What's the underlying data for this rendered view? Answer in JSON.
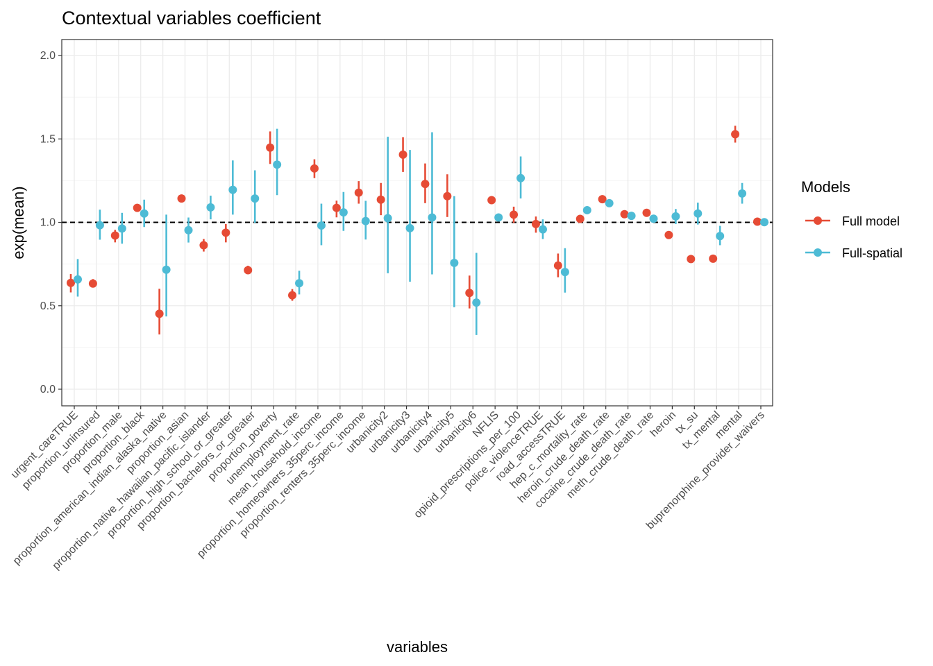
{
  "chart_data": {
    "type": "scatter",
    "subtype": "pointrange-dodged",
    "title": "Contextual variables coefficient",
    "xlabel": "variables",
    "ylabel": "exp(mean)",
    "ylim": [
      -0.1,
      2.1
    ],
    "yticks": [
      0.0,
      0.5,
      1.0,
      1.5,
      2.0
    ],
    "ytick_labels": [
      "0.0",
      "0.5",
      "1.0",
      "1.5",
      "2.0"
    ],
    "reference_line": {
      "y": 1.0,
      "style": "dashed",
      "color": "#000000"
    },
    "grid": true,
    "legend": {
      "title": "Models",
      "placement": "right"
    },
    "categories": [
      "urgent_careTRUE",
      "proportion_uninsured",
      "proportion_male",
      "proportion_black",
      "proportion_american_indian_alaska_native",
      "proportion_asian",
      "proportion_native_hawaiian_pacific_islander",
      "proportion_high_school_or_greater",
      "proportion_bachelors_or_greater",
      "proportion_poverty",
      "unemployment_rate",
      "mean_household_income",
      "proportion_homeowners_35perc_income",
      "proportion_renters_35perc_income",
      "urbanicity2",
      "urbanicity3",
      "urbanicity4",
      "urbanicity5",
      "urbanicity6",
      "NFLIS",
      "opioid_prescriptions_per_100",
      "police_violenceTRUE",
      "road_accessTRUE",
      "hep_c_mortality_rate",
      "heroin_crude_death_rate",
      "cocaine_crude_death_rate",
      "meth_crude_death_rate",
      "heroin",
      "tx_su",
      "tx_mental",
      "mental",
      "buprenorphine_provider_waivers"
    ],
    "series": [
      {
        "name": "Full model",
        "color": "#E64B35",
        "values": [
          0.637,
          0.633,
          0.921,
          1.087,
          0.452,
          1.143,
          0.863,
          0.938,
          0.713,
          1.448,
          0.563,
          1.323,
          1.087,
          1.178,
          1.136,
          1.406,
          1.23,
          1.157,
          0.577,
          1.133,
          1.046,
          0.99,
          0.741,
          1.021,
          1.139,
          1.049,
          1.057,
          0.924,
          0.78,
          0.782,
          1.528,
          1.004
        ],
        "lower": [
          0.58,
          0.61,
          0.88,
          1.07,
          0.328,
          1.13,
          0.825,
          0.88,
          0.69,
          1.35,
          0.53,
          1.265,
          1.03,
          1.112,
          1.043,
          1.302,
          1.115,
          1.032,
          0.484,
          1.12,
          0.997,
          0.938,
          0.671,
          1.01,
          1.128,
          1.038,
          1.046,
          0.912,
          0.76,
          0.765,
          1.478,
          0.995
        ],
        "upper": [
          0.69,
          0.66,
          0.955,
          1.1,
          0.602,
          1.156,
          0.9,
          0.99,
          0.74,
          1.545,
          0.6,
          1.378,
          1.13,
          1.247,
          1.236,
          1.51,
          1.353,
          1.288,
          0.681,
          1.146,
          1.094,
          1.035,
          0.813,
          1.032,
          1.15,
          1.06,
          1.068,
          0.936,
          0.8,
          0.8,
          1.579,
          1.013
        ]
      },
      {
        "name": "Full-spatial",
        "color": "#4DBBD5",
        "values": [
          0.658,
          0.983,
          0.963,
          1.053,
          0.716,
          0.953,
          1.09,
          1.195,
          1.143,
          1.346,
          0.635,
          0.981,
          1.06,
          1.008,
          1.025,
          0.965,
          1.029,
          0.757,
          0.519,
          1.029,
          1.265,
          0.958,
          0.702,
          1.073,
          1.115,
          1.039,
          1.022,
          1.036,
          1.053,
          0.918,
          1.173,
          1.001
        ],
        "lower": [
          0.555,
          0.896,
          0.872,
          0.972,
          0.436,
          0.879,
          1.018,
          1.046,
          0.997,
          1.163,
          0.568,
          0.863,
          0.949,
          0.897,
          0.695,
          0.644,
          0.688,
          0.491,
          0.325,
          1.018,
          1.143,
          0.9,
          0.579,
          1.056,
          1.104,
          1.028,
          1.011,
          0.99,
          0.987,
          0.863,
          1.112,
          0.992
        ],
        "upper": [
          0.78,
          1.076,
          1.057,
          1.136,
          1.046,
          1.029,
          1.16,
          1.371,
          1.312,
          1.561,
          0.71,
          1.112,
          1.182,
          1.129,
          1.513,
          1.434,
          1.54,
          1.157,
          0.817,
          1.04,
          1.395,
          1.018,
          0.845,
          1.09,
          1.126,
          1.05,
          1.033,
          1.08,
          1.118,
          0.979,
          1.236,
          1.01
        ]
      }
    ]
  }
}
